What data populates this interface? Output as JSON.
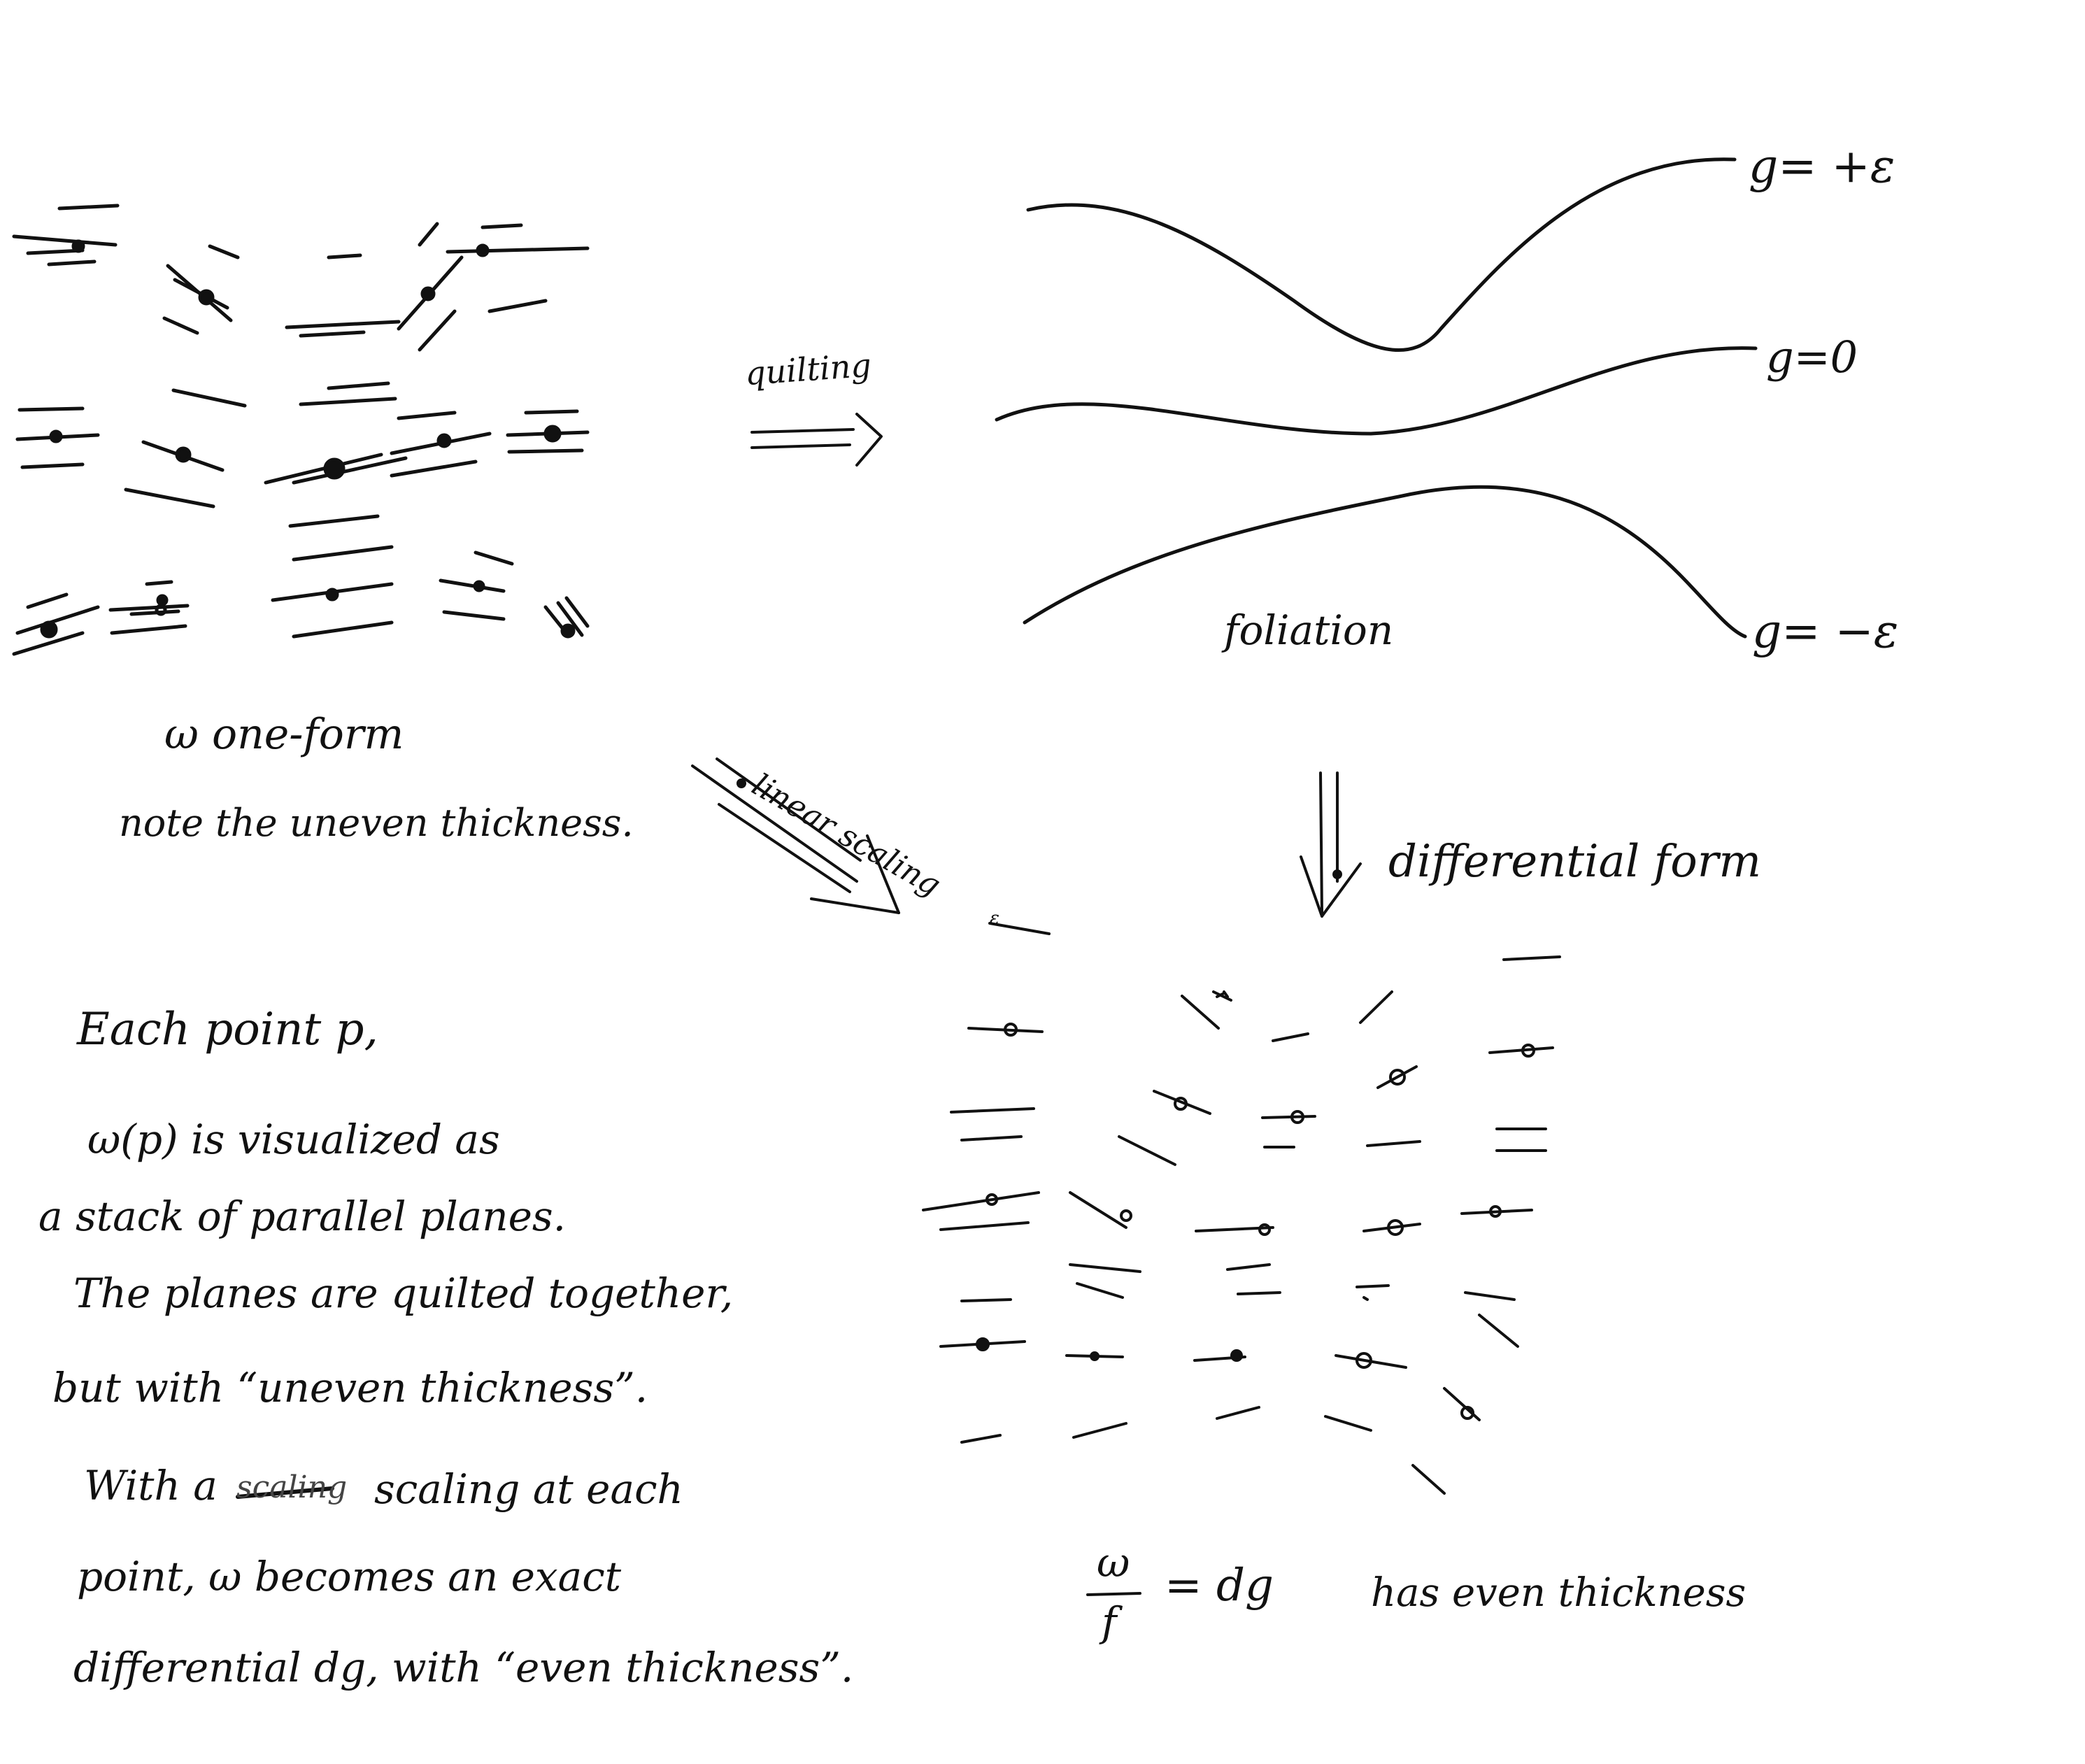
{
  "labels": {
    "g_plus": "g= +ε",
    "g_zero": "g=0",
    "g_minus": "g= −ε",
    "quilting": "quilting",
    "foliation": "foliation",
    "omega_oneform": "ω   one-form",
    "uneven_note": "note the uneven thickness.",
    "linear_scaling": "linear scaling",
    "differential_form": "differential form",
    "eps_small": "ε",
    "frac_num": "ω",
    "frac_den": "f",
    "eq_rhs": "= dg",
    "even_thickness": "has even thickness"
  },
  "explanation": {
    "line1": "Each point p,",
    "line2": "ω(p) is visualized as",
    "line3": "a stack of parallel planes.",
    "line4": "The planes are quilted together,",
    "line5": "but with “uneven thickness”.",
    "line6_a": "With a",
    "line6_struck": "scaling",
    "line6_b": "scaling at each",
    "line7": "point,  ω becomes an exact",
    "line8": "differential dg, with “even thickness”."
  },
  "colors": {
    "ink": "#111111",
    "paper": "#ffffff"
  }
}
